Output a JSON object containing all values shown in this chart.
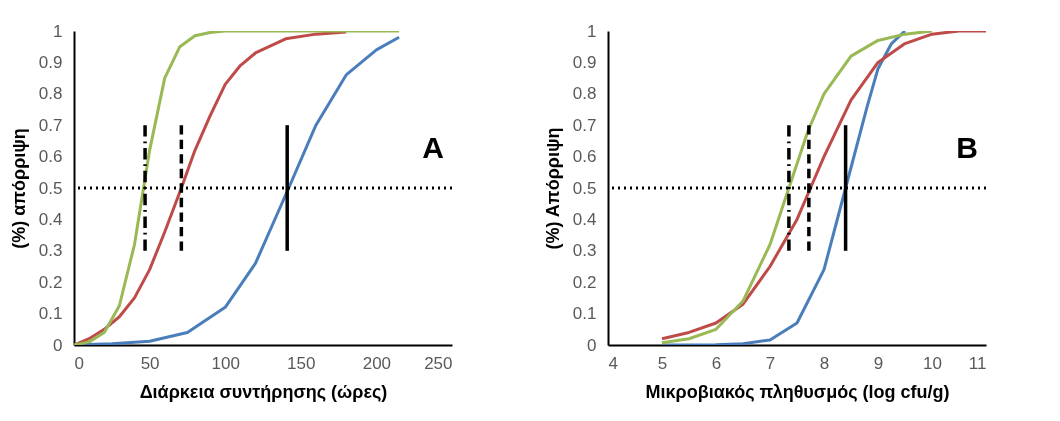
{
  "chart_data": [
    {
      "type": "line",
      "xlabel": "Διάρκεια συντήρησης (ώρες)",
      "ylabel": "(%) απόρριψη",
      "annotations": [
        "A"
      ],
      "xlim": [
        0,
        250
      ],
      "xticks": [
        0,
        50,
        100,
        150,
        200,
        250
      ],
      "ylim": [
        0,
        1
      ],
      "yticks": [
        0,
        0.1,
        0.2,
        0.3,
        0.4,
        0.5,
        0.6,
        0.7,
        0.8,
        0.9,
        1
      ],
      "grid": false,
      "line_style": "solid",
      "ref_lines": [
        {
          "axis": "y",
          "value": 0.5,
          "color": "#000000",
          "line_style": "dotted"
        }
      ],
      "series": [
        {
          "color": "#4a7ebb",
          "x": [
            0,
            25,
            50,
            75,
            100,
            120,
            142,
            160,
            180,
            200,
            215
          ],
          "values": [
            0,
            0.004,
            0.012,
            0.04,
            0.12,
            0.26,
            0.5,
            0.7,
            0.86,
            0.94,
            0.98
          ]
        },
        {
          "color": "#be4b48",
          "x": [
            0,
            10,
            20,
            30,
            40,
            50,
            60,
            71,
            80,
            90,
            100,
            110,
            120,
            140,
            160,
            180
          ],
          "values": [
            0,
            0.02,
            0.05,
            0.09,
            0.15,
            0.24,
            0.36,
            0.5,
            0.62,
            0.73,
            0.83,
            0.89,
            0.93,
            0.975,
            0.99,
            0.997
          ]
        },
        {
          "color": "#98b954",
          "x": [
            0,
            10,
            20,
            30,
            40,
            46,
            50,
            60,
            70,
            80,
            90,
            100,
            150,
            215
          ],
          "values": [
            0,
            0.01,
            0.04,
            0.125,
            0.32,
            0.5,
            0.62,
            0.85,
            0.95,
            0.985,
            0.995,
            1,
            1,
            1
          ]
        },
        {
          "color": "#000000",
          "line_style": "dashdot",
          "x": [
            47,
            47
          ],
          "values": [
            0.3,
            0.7
          ]
        },
        {
          "color": "#000000",
          "line_style": "dashed",
          "x": [
            71,
            71
          ],
          "values": [
            0.3,
            0.7
          ]
        },
        {
          "color": "#000000",
          "line_style": "solid",
          "x": [
            141,
            141
          ],
          "values": [
            0.3,
            0.7
          ]
        }
      ]
    },
    {
      "type": "line",
      "xlabel": "Μικροβιακός πληθυσμός (log cfu/g)",
      "ylabel": "(%) Απόρριψη",
      "annotations": [
        "B"
      ],
      "xlim": [
        4,
        11
      ],
      "xticks": [
        4,
        5,
        6,
        7,
        8,
        9,
        10,
        11
      ],
      "ylim": [
        0,
        1
      ],
      "yticks": [
        0,
        0.1,
        0.2,
        0.3,
        0.4,
        0.5,
        0.6,
        0.7,
        0.8,
        0.9,
        1
      ],
      "grid": false,
      "line_style": "solid",
      "ref_lines": [
        {
          "axis": "y",
          "value": 0.5,
          "color": "#000000",
          "line_style": "dotted"
        }
      ],
      "series": [
        {
          "color": "#4a7ebb",
          "x": [
            5,
            5.5,
            6,
            6.5,
            7,
            7.5,
            8,
            8.4,
            8.8,
            9,
            9.25,
            9.5
          ],
          "values": [
            0,
            0,
            0.001,
            0.004,
            0.016,
            0.07,
            0.24,
            0.5,
            0.76,
            0.88,
            0.96,
            1
          ]
        },
        {
          "color": "#be4b48",
          "x": [
            5,
            5.5,
            6,
            6.5,
            7,
            7.5,
            7.75,
            8,
            8.5,
            9,
            9.5,
            10,
            10.5,
            11
          ],
          "values": [
            0.02,
            0.04,
            0.07,
            0.13,
            0.25,
            0.4,
            0.5,
            0.6,
            0.78,
            0.9,
            0.96,
            0.99,
            1,
            1
          ]
        },
        {
          "color": "#98b954",
          "x": [
            5,
            5.5,
            6,
            6.5,
            7,
            7.35,
            7.7,
            8,
            8.5,
            9,
            9.5,
            10
          ],
          "values": [
            0.007,
            0.02,
            0.05,
            0.14,
            0.32,
            0.5,
            0.68,
            0.8,
            0.92,
            0.97,
            0.99,
            1
          ]
        },
        {
          "color": "#000000",
          "line_style": "dashdot",
          "x": [
            7.35,
            7.35
          ],
          "values": [
            0.3,
            0.7
          ]
        },
        {
          "color": "#000000",
          "line_style": "dashed",
          "x": [
            7.72,
            7.72
          ],
          "values": [
            0.3,
            0.7
          ]
        },
        {
          "color": "#000000",
          "line_style": "solid",
          "x": [
            8.4,
            8.4
          ],
          "values": [
            0.3,
            0.7
          ]
        }
      ]
    }
  ]
}
